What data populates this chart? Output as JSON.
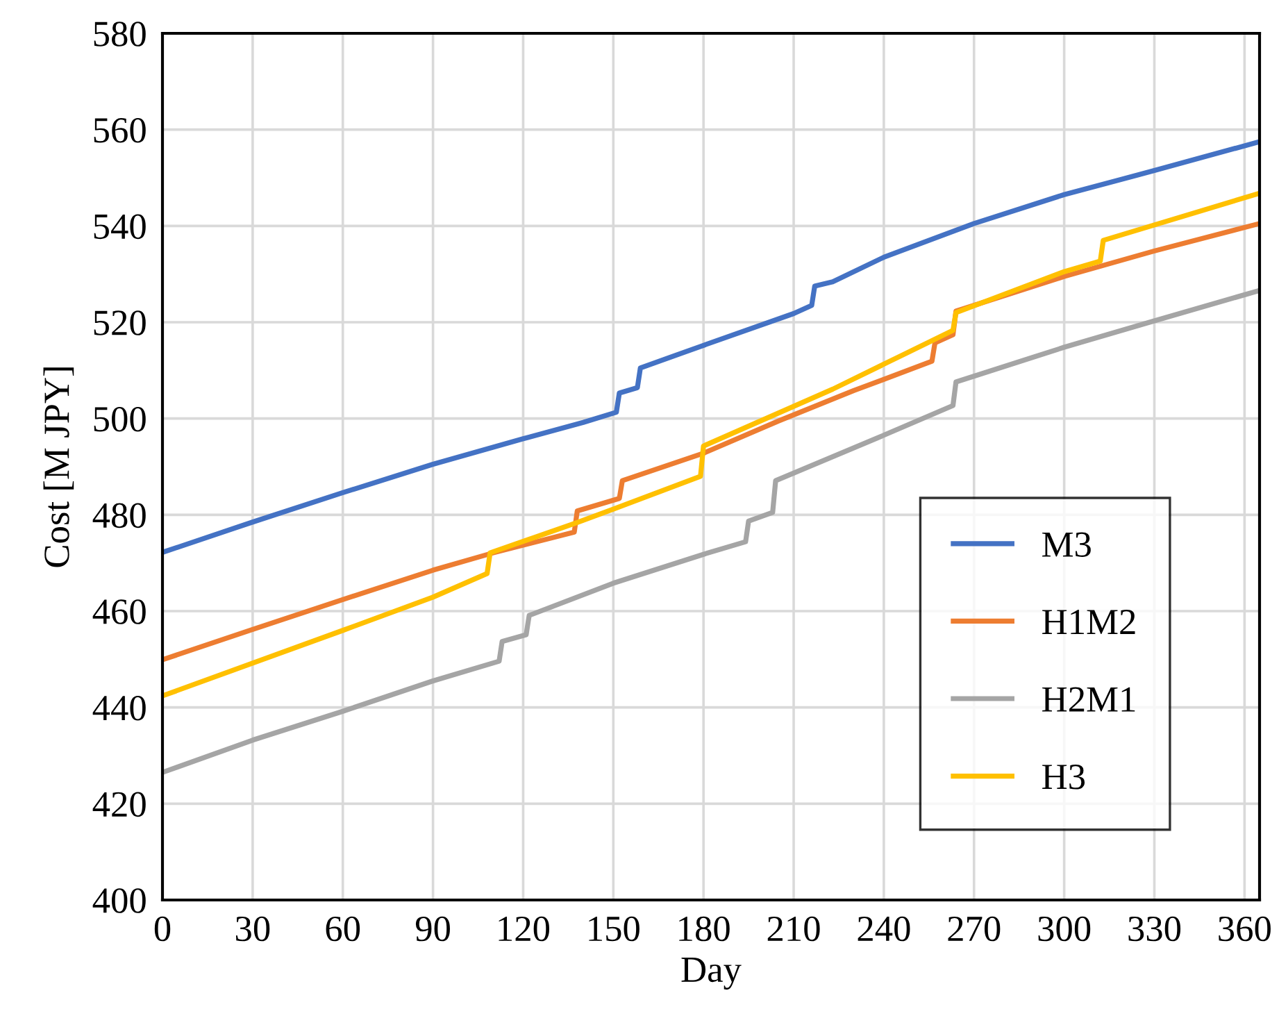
{
  "chart_data": {
    "type": "line",
    "xlabel": "Day",
    "ylabel": "Cost [M JPY]",
    "xlim": [
      0,
      365
    ],
    "xticks": [
      0,
      30,
      60,
      90,
      120,
      150,
      180,
      210,
      240,
      270,
      300,
      330,
      360
    ],
    "ylim": [
      400,
      580
    ],
    "yticks": [
      400,
      420,
      440,
      460,
      480,
      500,
      520,
      540,
      560,
      580
    ],
    "grid": true,
    "legend": "bottom right",
    "marker": "none",
    "line_style": "solid",
    "series": [
      {
        "name": "M3",
        "color": "#4472c4",
        "x": [
          0,
          30,
          60,
          90,
          120,
          140,
          151,
          152,
          158,
          159,
          180,
          210,
          216,
          217,
          223,
          240,
          270,
          300,
          330,
          365
        ],
        "values": [
          472.2,
          478.5,
          484.6,
          490.5,
          495.8,
          499.2,
          501.3,
          505.3,
          506.4,
          510.5,
          515.2,
          521.8,
          523.5,
          527.5,
          528.4,
          533.5,
          540.5,
          546.5,
          551.5,
          557.5
        ]
      },
      {
        "name": "H1M2",
        "color": "#ed7d31",
        "x": [
          0,
          30,
          60,
          90,
          110,
          137,
          138,
          152,
          153,
          180,
          205,
          230,
          256,
          257,
          263,
          264,
          300,
          330,
          365
        ],
        "values": [
          449.9,
          456.2,
          462.4,
          468.5,
          472.1,
          476.4,
          480.8,
          483.4,
          487.1,
          492.8,
          499.5,
          505.8,
          511.9,
          515.7,
          517.4,
          522.3,
          529.5,
          534.8,
          540.5
        ]
      },
      {
        "name": "H2M1",
        "color": "#a5a5a5",
        "x": [
          0,
          30,
          60,
          90,
          112,
          113,
          121,
          122,
          150,
          180,
          194,
          195,
          203,
          204,
          238,
          263,
          264,
          300,
          330,
          365
        ],
        "values": [
          426.5,
          433.2,
          439.2,
          445.5,
          449.6,
          453.7,
          455.1,
          459.1,
          465.8,
          471.8,
          474.4,
          478.7,
          480.5,
          487.1,
          496.0,
          502.7,
          507.6,
          514.8,
          520.3,
          526.6
        ]
      },
      {
        "name": "H3",
        "color": "#ffc000",
        "x": [
          0,
          30,
          60,
          90,
          108,
          109,
          138,
          150,
          179,
          180,
          223,
          263,
          264,
          300,
          312,
          313,
          365
        ],
        "values": [
          442.4,
          449.2,
          456.0,
          462.9,
          467.8,
          472.1,
          478.4,
          481.2,
          488.0,
          494.3,
          506.1,
          518.3,
          522.0,
          530.5,
          532.7,
          537.0,
          546.8
        ]
      }
    ]
  }
}
